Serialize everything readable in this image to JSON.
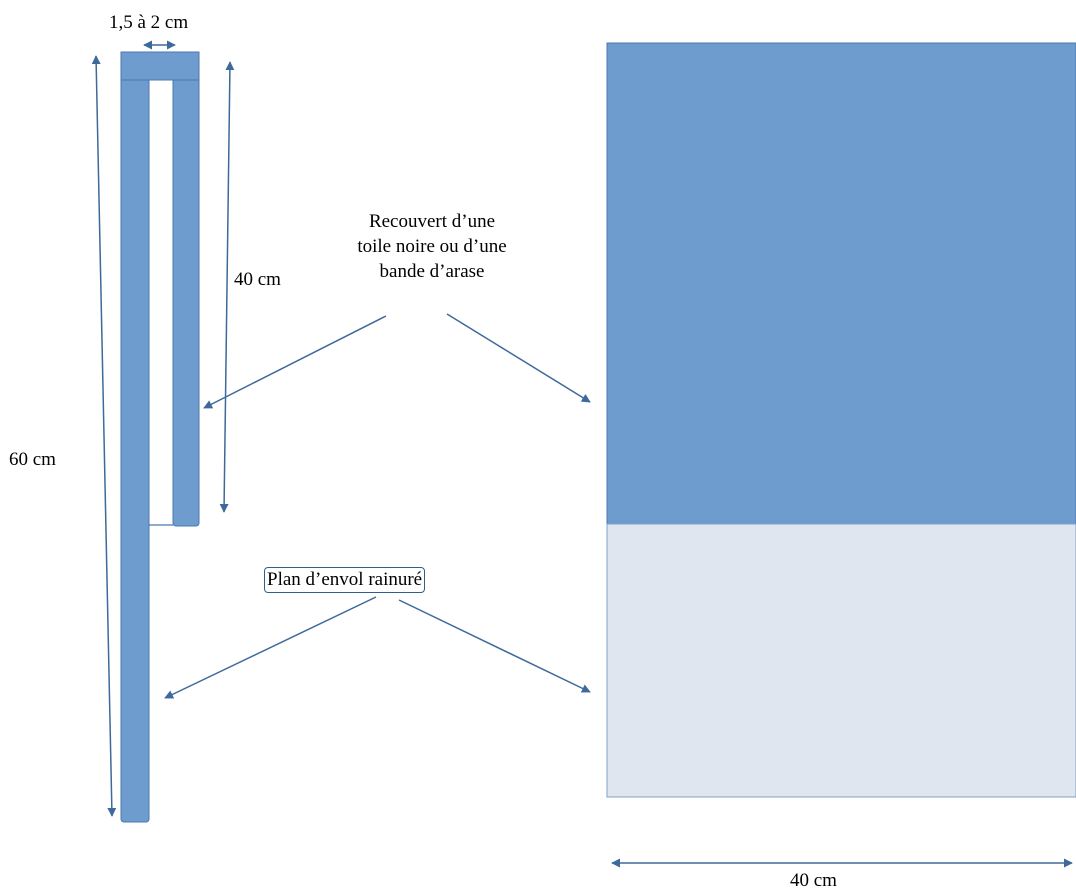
{
  "labels": {
    "gap_width": "1,5 à 2 cm",
    "inner_height": "40 cm",
    "total_height": "60 cm",
    "covered_line1": "Recouvert d’une",
    "covered_line2": "toile noire ou d’une",
    "covered_line3": "bande d’arase",
    "landing_board": "Plan d’envol rainuré",
    "front_width": "40 cm"
  },
  "colors": {
    "board": "#6e9ccf",
    "board_edge": "#4a79ad",
    "landing_panel": "#dfe6ef",
    "landing_edge": "#7fa0c4",
    "arrow": "#3d6a9a",
    "text": "#000000"
  }
}
